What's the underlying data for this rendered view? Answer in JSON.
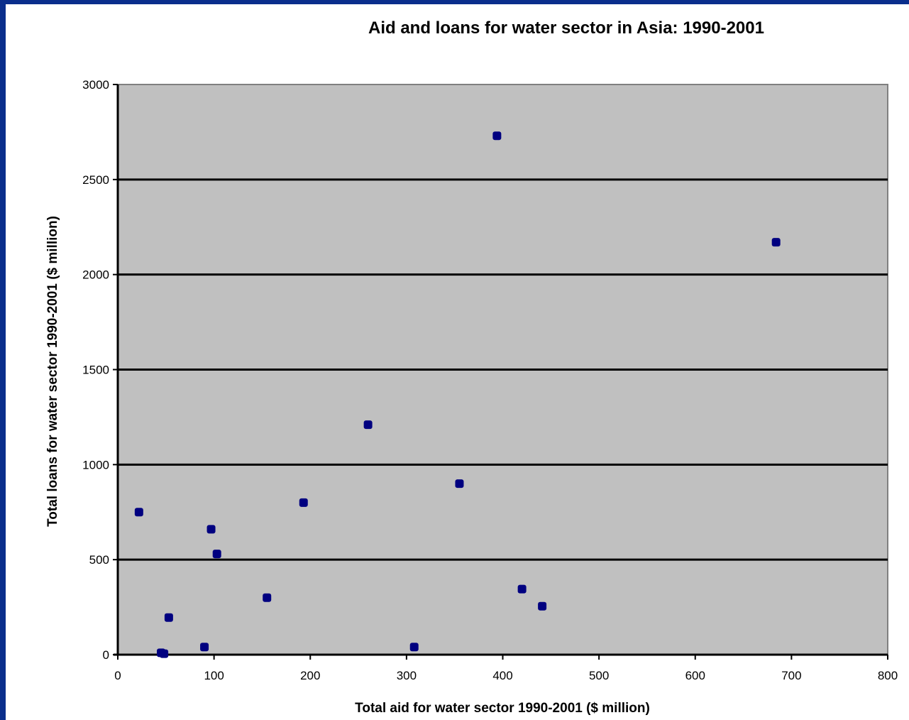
{
  "chart_data": {
    "type": "scatter",
    "title": "Aid and loans for water sector in Asia: 1990-2001",
    "xlabel": "Total aid for water sector 1990-2001 ($ million)",
    "ylabel": "Total loans for water sector 1990-2001 ($ million)",
    "xlim": [
      0,
      800
    ],
    "ylim": [
      0,
      3000
    ],
    "x_ticks": [
      0,
      100,
      200,
      300,
      400,
      500,
      600,
      700,
      800
    ],
    "y_ticks": [
      0,
      500,
      1000,
      1500,
      2000,
      2500,
      3000
    ],
    "grid": "horizontal",
    "legend": "none",
    "colors": {
      "plot_background": "#c0c0c0",
      "marker": "#000080",
      "gridline": "#000000",
      "slide_border": "#0a2e8c"
    },
    "points": [
      {
        "x": 22,
        "y": 750
      },
      {
        "x": 45,
        "y": 10
      },
      {
        "x": 48,
        "y": 5
      },
      {
        "x": 53,
        "y": 195
      },
      {
        "x": 90,
        "y": 40
      },
      {
        "x": 97,
        "y": 660
      },
      {
        "x": 103,
        "y": 530
      },
      {
        "x": 155,
        "y": 300
      },
      {
        "x": 193,
        "y": 800
      },
      {
        "x": 260,
        "y": 1210
      },
      {
        "x": 308,
        "y": 40
      },
      {
        "x": 355,
        "y": 900
      },
      {
        "x": 394,
        "y": 2730
      },
      {
        "x": 420,
        "y": 345
      },
      {
        "x": 441,
        "y": 255
      },
      {
        "x": 684,
        "y": 2170
      }
    ]
  }
}
